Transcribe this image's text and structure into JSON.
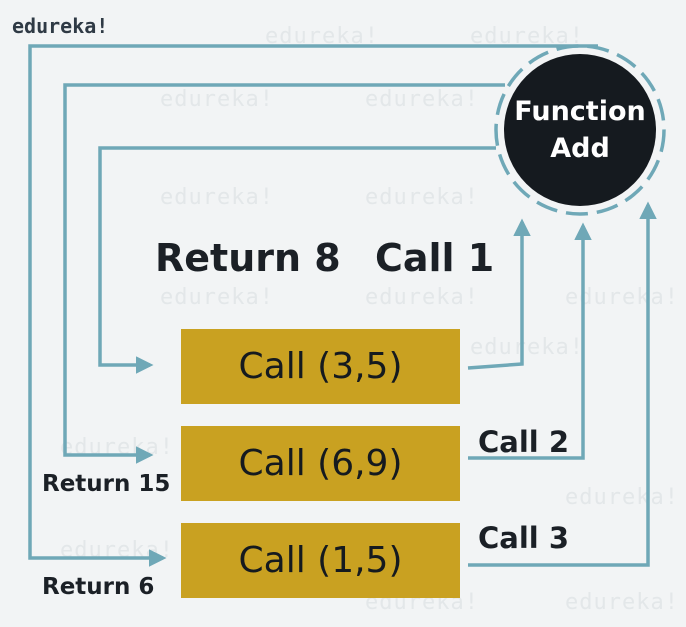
{
  "brand": {
    "logo_text": "edureka!"
  },
  "function_node": {
    "line1": "Function",
    "line2": "Add"
  },
  "calls": [
    {
      "label": "Call (3,5)"
    },
    {
      "label": "Call (6,9)"
    },
    {
      "label": "Call (1,5)"
    }
  ],
  "annotations": {
    "return_8": "Return 8",
    "call_1": "Call 1",
    "call_2": "Call  2",
    "call_3": "Call  3",
    "return_15": "Return 15",
    "return_6": "Return 6"
  },
  "colors": {
    "arrow": "#6fa8b7",
    "box": "#c9a121",
    "circle": "#151a1f",
    "background": "#f2f4f5"
  }
}
